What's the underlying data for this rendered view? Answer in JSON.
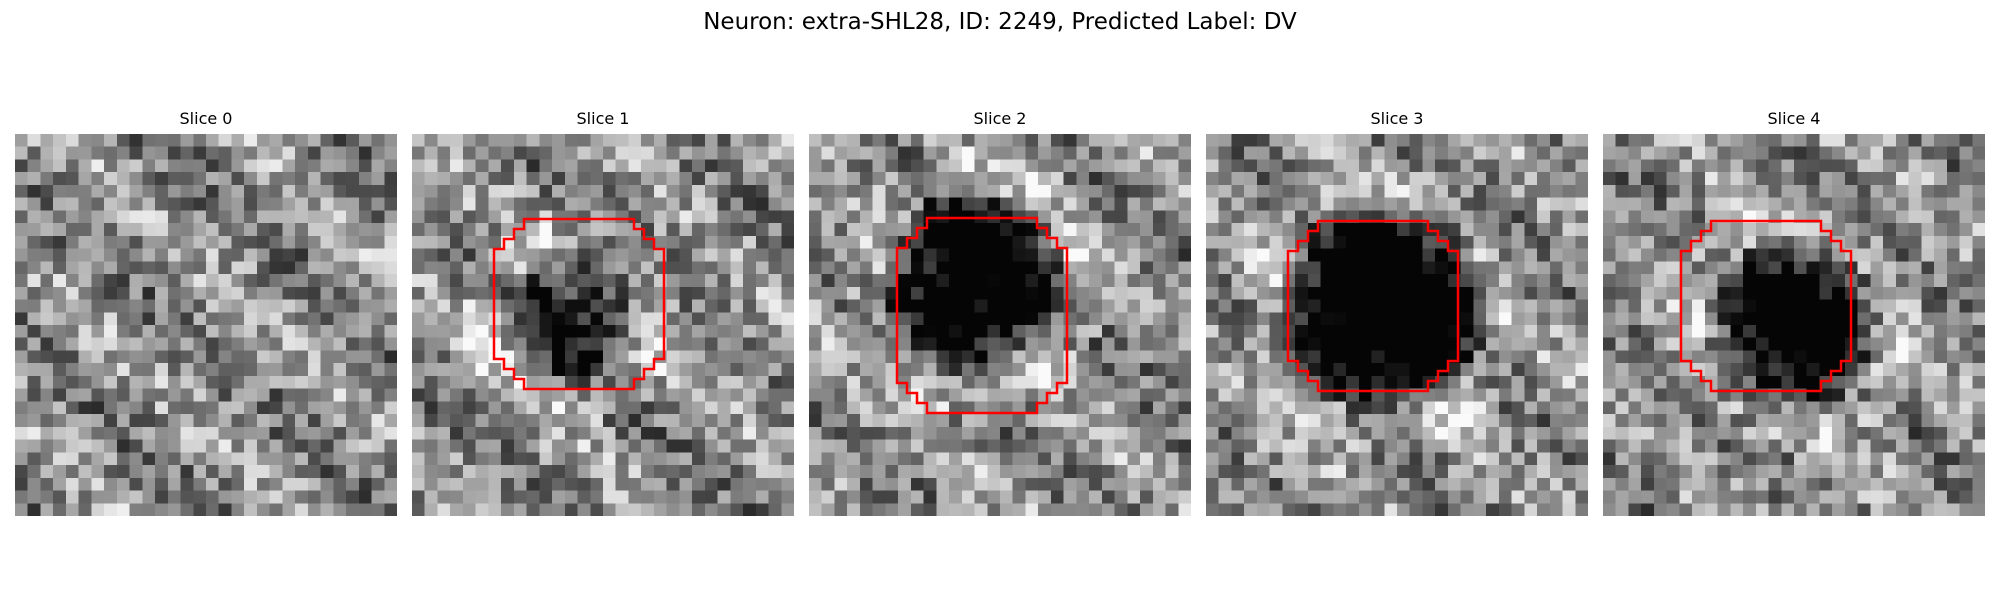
{
  "figure": {
    "title": "Neuron: extra-SHL28, ID: 2249, Predicted Label: DV",
    "contour_color": "#ff0000"
  },
  "slices": [
    {
      "title": "Slice 0",
      "has_contour": false
    },
    {
      "title": "Slice 1",
      "has_contour": true
    },
    {
      "title": "Slice 2",
      "has_contour": true
    },
    {
      "title": "Slice 3",
      "has_contour": true
    },
    {
      "title": "Slice 4",
      "has_contour": true
    }
  ]
}
